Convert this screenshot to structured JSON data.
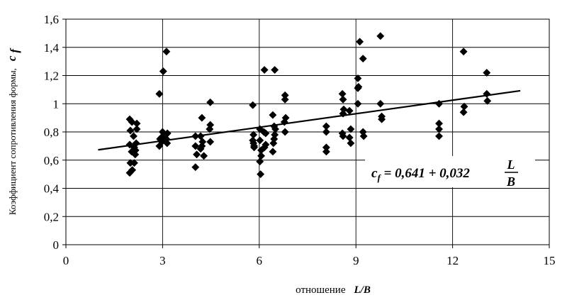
{
  "chart_data": {
    "type": "scatter",
    "title": "",
    "xlabel": {
      "text": "отношение",
      "symbol": "L/B"
    },
    "ylabel": {
      "text": "Коэффициент сопротивления формы,",
      "symbol": "c",
      "symbol_sub": "f"
    },
    "xlim": [
      0,
      15
    ],
    "ylim": [
      0,
      1.6
    ],
    "xticks": [
      0,
      3,
      6,
      9,
      12,
      15
    ],
    "xtick_labels": [
      "0",
      "3",
      "6",
      "9",
      "12",
      "15"
    ],
    "yticks": [
      0,
      0.2,
      0.4,
      0.6,
      0.8,
      1,
      1.2,
      1.4,
      1.6
    ],
    "ytick_labels": [
      "0",
      "0,2",
      "0,4",
      "0,6",
      "0,8",
      "1",
      "1,2",
      "1,4",
      "1,6"
    ],
    "grid": true,
    "marker": "diamond",
    "marker_color": "#000000",
    "points": [
      [
        1.98,
        0.89
      ],
      [
        2.05,
        0.87
      ],
      [
        2.0,
        0.81
      ],
      [
        2.1,
        0.77
      ],
      [
        1.98,
        0.71
      ],
      [
        2.12,
        0.69
      ],
      [
        2.04,
        0.66
      ],
      [
        2.15,
        0.64
      ],
      [
        2.0,
        0.58
      ],
      [
        2.12,
        0.58
      ],
      [
        1.98,
        0.51
      ],
      [
        2.06,
        0.53
      ],
      [
        2.2,
        0.86
      ],
      [
        2.2,
        0.82
      ],
      [
        2.18,
        0.72
      ],
      [
        2.16,
        0.67
      ],
      [
        2.9,
        1.07
      ],
      [
        3.02,
        1.23
      ],
      [
        3.12,
        1.37
      ],
      [
        2.9,
        0.7
      ],
      [
        2.92,
        0.75
      ],
      [
        2.96,
        0.76
      ],
      [
        3.0,
        0.8
      ],
      [
        3.06,
        0.77
      ],
      [
        3.12,
        0.75
      ],
      [
        3.14,
        0.72
      ],
      [
        3.15,
        0.79
      ],
      [
        2.98,
        0.73
      ],
      [
        4.02,
        0.77
      ],
      [
        4.02,
        0.7
      ],
      [
        4.06,
        0.64
      ],
      [
        4.02,
        0.55
      ],
      [
        4.22,
        0.9
      ],
      [
        4.18,
        0.77
      ],
      [
        4.22,
        0.7
      ],
      [
        4.28,
        0.63
      ],
      [
        4.24,
        0.73
      ],
      [
        4.18,
        0.68
      ],
      [
        4.48,
        1.01
      ],
      [
        4.48,
        0.85
      ],
      [
        4.46,
        0.82
      ],
      [
        4.48,
        0.73
      ],
      [
        5.8,
        0.99
      ],
      [
        5.82,
        0.78
      ],
      [
        5.8,
        0.74
      ],
      [
        5.82,
        0.72
      ],
      [
        5.84,
        0.7
      ],
      [
        5.84,
        0.69
      ],
      [
        6.02,
        0.82
      ],
      [
        6.02,
        0.74
      ],
      [
        6.06,
        0.67
      ],
      [
        6.06,
        0.63
      ],
      [
        6.02,
        0.59
      ],
      [
        6.04,
        0.5
      ],
      [
        6.16,
        1.24
      ],
      [
        6.14,
        0.8
      ],
      [
        6.2,
        0.79
      ],
      [
        6.2,
        0.71
      ],
      [
        6.16,
        0.69
      ],
      [
        6.48,
        1.24
      ],
      [
        6.42,
        0.92
      ],
      [
        6.46,
        0.84
      ],
      [
        6.5,
        0.82
      ],
      [
        6.48,
        0.78
      ],
      [
        6.46,
        0.75
      ],
      [
        6.44,
        0.72
      ],
      [
        6.42,
        0.66
      ],
      [
        6.8,
        1.06
      ],
      [
        6.8,
        1.03
      ],
      [
        6.82,
        0.9
      ],
      [
        6.78,
        0.87
      ],
      [
        6.8,
        0.8
      ],
      [
        8.08,
        0.84
      ],
      [
        8.08,
        0.8
      ],
      [
        8.08,
        0.69
      ],
      [
        8.08,
        0.66
      ],
      [
        8.58,
        1.07
      ],
      [
        8.6,
        1.03
      ],
      [
        8.62,
        0.96
      ],
      [
        8.6,
        0.93
      ],
      [
        8.58,
        0.79
      ],
      [
        8.6,
        0.77
      ],
      [
        8.8,
        0.95
      ],
      [
        8.84,
        0.82
      ],
      [
        8.8,
        0.76
      ],
      [
        8.84,
        0.72
      ],
      [
        9.12,
        1.44
      ],
      [
        9.06,
        1.18
      ],
      [
        9.08,
        1.12
      ],
      [
        9.06,
        1.11
      ],
      [
        9.06,
        1.0
      ],
      [
        9.22,
        1.32
      ],
      [
        9.22,
        0.8
      ],
      [
        9.24,
        0.77
      ],
      [
        9.76,
        1.48
      ],
      [
        9.76,
        1.0
      ],
      [
        9.8,
        0.91
      ],
      [
        9.8,
        0.89
      ],
      [
        11.58,
        1.0
      ],
      [
        11.58,
        0.86
      ],
      [
        11.58,
        0.82
      ],
      [
        11.58,
        0.77
      ],
      [
        12.34,
        1.37
      ],
      [
        12.36,
        0.98
      ],
      [
        12.34,
        0.94
      ],
      [
        13.06,
        1.22
      ],
      [
        13.06,
        1.07
      ],
      [
        13.08,
        1.02
      ]
    ],
    "trendline": {
      "x": [
        1,
        14.1
      ],
      "intercept": 0.641,
      "slope": 0.032
    },
    "annotation": {
      "lhs": "c",
      "lhs_sub": "f",
      "rhs": " = 0,641 + 0,032",
      "frac_num": "L",
      "frac_den": "B"
    }
  }
}
